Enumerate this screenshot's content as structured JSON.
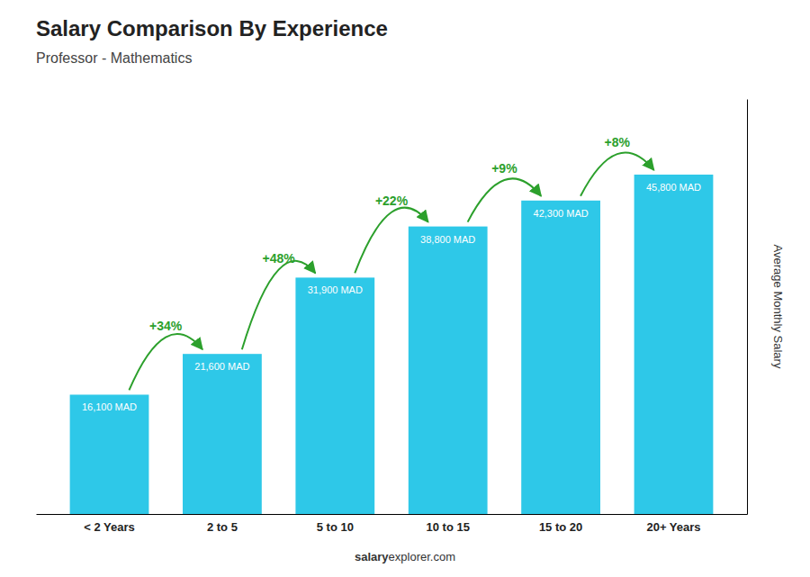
{
  "chart_data": {
    "type": "bar",
    "title": "Salary Comparison By Experience",
    "subtitle": "Professor - Mathematics",
    "ylabel": "Average Monthly Salary",
    "categories": [
      "< 2 Years",
      "2 to 5",
      "5 to 10",
      "10 to 15",
      "15 to 20",
      "20+ Years"
    ],
    "values": [
      16100,
      21600,
      31900,
      38800,
      42300,
      45800
    ],
    "value_labels": [
      "16,100 MAD",
      "21,600 MAD",
      "31,900 MAD",
      "38,800 MAD",
      "42,300 MAD",
      "45,800 MAD"
    ],
    "data_labels": true,
    "color": "#2ec8e8",
    "annotations": [
      "+34%",
      "+48%",
      "+22%",
      "+9%",
      "+8%"
    ],
    "footer": [
      "salary",
      "explorer",
      ".com"
    ],
    "ylim": [
      0,
      56000
    ],
    "tick_labels": "x"
  }
}
